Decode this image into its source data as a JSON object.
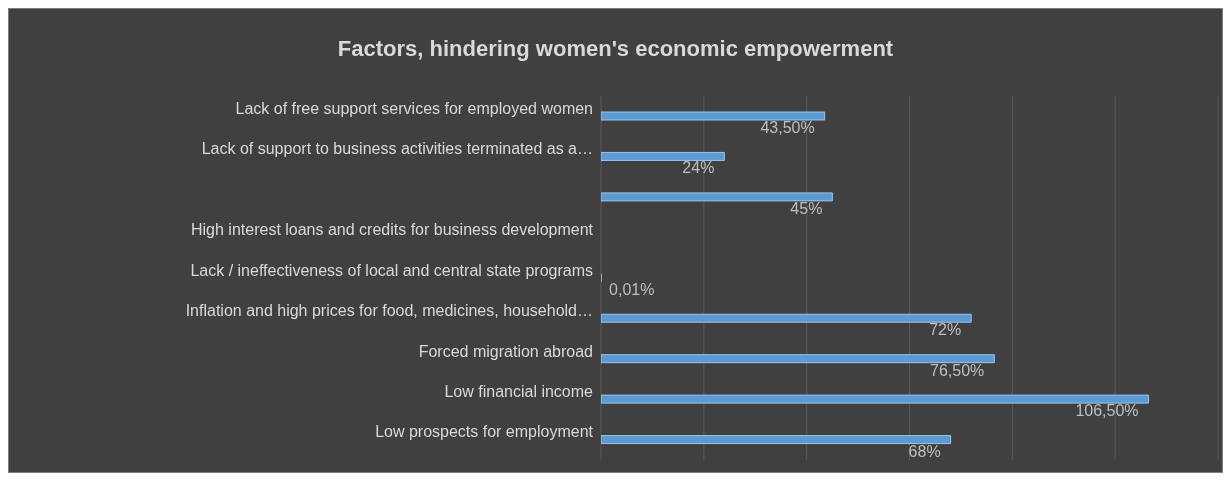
{
  "chart_data": {
    "type": "bar",
    "orientation": "horizontal",
    "title": "Factors, hindering women's economic empowerment",
    "categories": [
      "Lack of free support services for employed women",
      "Lack of support to business activities terminated as a…",
      null,
      "High interest loans and credits for business development",
      "Lack / ineffectiveness of local and central state programs",
      "Inflation and high prices for food, medicines, household…",
      "Forced migration abroad",
      "Low financial income",
      "Low prospects for employment"
    ],
    "values": [
      43.5,
      24,
      45,
      null,
      0.01,
      72,
      76.5,
      106.5,
      68
    ],
    "value_labels": [
      "43,50%",
      "24%",
      "45%",
      null,
      "0,01%",
      "72%",
      "76,50%",
      "106,50%",
      "68%"
    ],
    "color": "#5b9bd5",
    "xlim": [
      0,
      120
    ],
    "grid": "x",
    "tick_labels": "y"
  }
}
